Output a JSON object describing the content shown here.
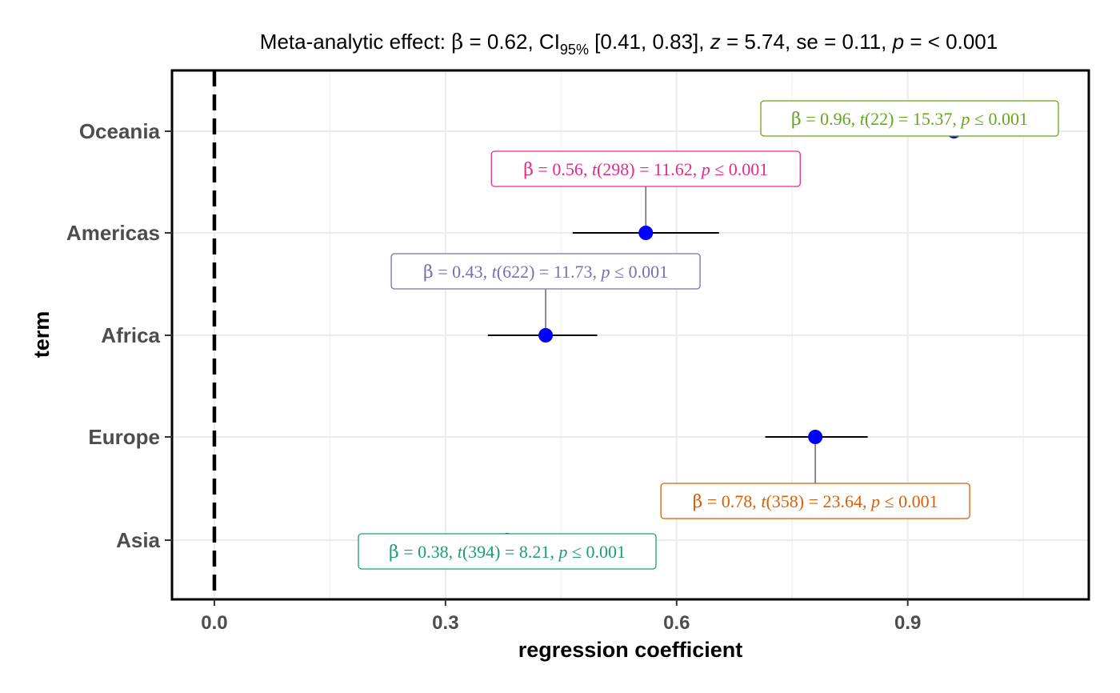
{
  "chart_data": {
    "type": "scatter",
    "subtype": "forest-plot",
    "title": {
      "prefix": "Meta-analytic effect: ",
      "beta_symbol": "β",
      "beta_text": " = 0.62, CI",
      "ci_subscript": "95%",
      "ci_text": " [0.41, 0.83], ",
      "z_symbol": "z",
      "z_text": " = 5.74, se = 0.11, ",
      "p_symbol": "p",
      "p_text": " = < 0.001"
    },
    "xlabel": "regression coefficient",
    "ylabel": "term",
    "xlim": [
      -0.055,
      1.135
    ],
    "x_ticks": [
      {
        "value": 0.0,
        "label": "0.0"
      },
      {
        "value": 0.3,
        "label": "0.3"
      },
      {
        "value": 0.6,
        "label": "0.6"
      },
      {
        "value": 0.9,
        "label": "0.9"
      }
    ],
    "x_minor_gridlines": [
      0.15,
      0.45,
      0.75,
      1.05
    ],
    "reference_line": 0,
    "grid": true,
    "point_color": "#0000ff",
    "terms": [
      {
        "term": "Oceania",
        "estimate": 0.96,
        "ci_low": 0.95,
        "ci_high": 0.97,
        "label": {
          "beta": "0.96",
          "df": "22",
          "t": "15.37",
          "p": "0.001"
        },
        "color": "#66a61e",
        "label_pos": "above-right"
      },
      {
        "term": "Americas",
        "estimate": 0.56,
        "ci_low": 0.465,
        "ci_high": 0.655,
        "label": {
          "beta": "0.56",
          "df": "298",
          "t": "11.62",
          "p": "0.001"
        },
        "color": "#e7298a",
        "label_pos": "above"
      },
      {
        "term": "Africa",
        "estimate": 0.43,
        "ci_low": 0.355,
        "ci_high": 0.497,
        "label": {
          "beta": "0.43",
          "df": "622",
          "t": "11.73",
          "p": "0.001"
        },
        "color": "#7570b3",
        "label_pos": "above"
      },
      {
        "term": "Europe",
        "estimate": 0.78,
        "ci_low": 0.715,
        "ci_high": 0.848,
        "label": {
          "beta": "0.78",
          "df": "358",
          "t": "23.64",
          "p": "0.001"
        },
        "color": "#d95f02",
        "label_pos": "below"
      },
      {
        "term": "Asia",
        "estimate": 0.38,
        "ci_low": 0.37,
        "ci_high": 0.39,
        "label": {
          "beta": "0.38",
          "df": "394",
          "t": "8.21",
          "p": "0.001"
        },
        "color": "#1b9e77",
        "label_pos": "below"
      }
    ]
  }
}
